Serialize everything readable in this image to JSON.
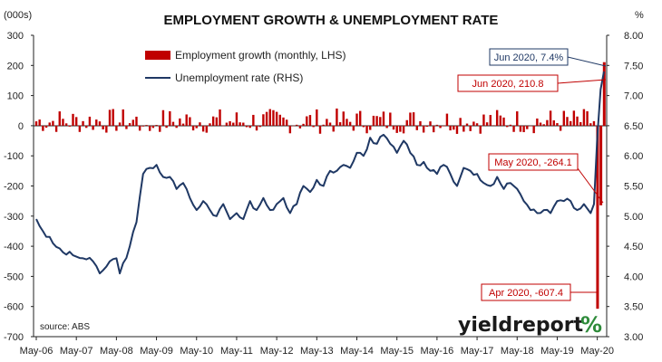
{
  "chart_data": {
    "type": "bar+line",
    "title": "EMPLOYMENT GROWTH & UNEMPLOYMENT RATE",
    "left_unit": "(000s)",
    "right_unit": "%",
    "y_left": {
      "min": -700,
      "max": 300,
      "ticks": [
        "300",
        "200",
        "100",
        "0",
        "-100",
        "-200",
        "-300",
        "-400",
        "-500",
        "-600",
        "-700"
      ]
    },
    "y_right": {
      "min": 3.0,
      "max": 8.0,
      "ticks": [
        "8.00",
        "7.50",
        "7.00",
        "6.50",
        "6.00",
        "5.50",
        "5.00",
        "4.50",
        "4.00",
        "3.50",
        "3.00"
      ]
    },
    "x_ticks": [
      "May-06",
      "May-07",
      "May-08",
      "May-09",
      "May-10",
      "May-11",
      "May-12",
      "May-13",
      "May-14",
      "May-15",
      "May-16",
      "May-17",
      "May-18",
      "May-19",
      "May-20"
    ],
    "series": [
      {
        "name": "Employment growth (monthly, LHS)",
        "color": "#c00000",
        "axis": "left",
        "kind": "bar"
      },
      {
        "name": "Unemployment rate (RHS)",
        "color": "#1f3864",
        "axis": "right",
        "kind": "line"
      }
    ],
    "employment_growth_recent": [
      {
        "date": "Apr 2020",
        "value": -607.4
      },
      {
        "date": "May 2020",
        "value": -264.1
      },
      {
        "date": "Jun 2020",
        "value": 210.8
      }
    ],
    "unemployment_rate_anchors": [
      {
        "month": 0,
        "value": 4.95
      },
      {
        "month": 2,
        "value": 4.75
      },
      {
        "month": 5,
        "value": 4.55
      },
      {
        "month": 8,
        "value": 4.4
      },
      {
        "month": 11,
        "value": 4.35
      },
      {
        "month": 14,
        "value": 4.3
      },
      {
        "month": 17,
        "value": 4.25
      },
      {
        "month": 19,
        "value": 4.05
      },
      {
        "month": 20,
        "value": 4.1
      },
      {
        "month": 22,
        "value": 4.25
      },
      {
        "month": 24,
        "value": 4.3
      },
      {
        "month": 25,
        "value": 4.05
      },
      {
        "month": 28,
        "value": 4.5
      },
      {
        "month": 30,
        "value": 4.9
      },
      {
        "month": 32,
        "value": 5.7
      },
      {
        "month": 34,
        "value": 5.8
      },
      {
        "month": 36,
        "value": 5.85
      },
      {
        "month": 38,
        "value": 5.65
      },
      {
        "month": 40,
        "value": 5.65
      },
      {
        "month": 42,
        "value": 5.45
      },
      {
        "month": 44,
        "value": 5.55
      },
      {
        "month": 46,
        "value": 5.3
      },
      {
        "month": 48,
        "value": 5.1
      },
      {
        "month": 50,
        "value": 5.25
      },
      {
        "month": 52,
        "value": 5.1
      },
      {
        "month": 54,
        "value": 5.0
      },
      {
        "month": 56,
        "value": 5.2
      },
      {
        "month": 58,
        "value": 4.95
      },
      {
        "month": 60,
        "value": 5.05
      },
      {
        "month": 62,
        "value": 4.95
      },
      {
        "month": 64,
        "value": 5.25
      },
      {
        "month": 66,
        "value": 5.1
      },
      {
        "month": 68,
        "value": 5.3
      },
      {
        "month": 70,
        "value": 5.1
      },
      {
        "month": 72,
        "value": 5.2
      },
      {
        "month": 74,
        "value": 5.3
      },
      {
        "month": 76,
        "value": 5.05
      },
      {
        "month": 78,
        "value": 5.2
      },
      {
        "month": 80,
        "value": 5.5
      },
      {
        "month": 82,
        "value": 5.4
      },
      {
        "month": 84,
        "value": 5.6
      },
      {
        "month": 86,
        "value": 5.5
      },
      {
        "month": 88,
        "value": 5.75
      },
      {
        "month": 90,
        "value": 5.75
      },
      {
        "month": 92,
        "value": 5.85
      },
      {
        "month": 94,
        "value": 5.8
      },
      {
        "month": 96,
        "value": 6.05
      },
      {
        "month": 98,
        "value": 6.0
      },
      {
        "month": 100,
        "value": 6.3
      },
      {
        "month": 102,
        "value": 6.2
      },
      {
        "month": 104,
        "value": 6.35
      },
      {
        "month": 106,
        "value": 6.2
      },
      {
        "month": 108,
        "value": 6.05
      },
      {
        "month": 110,
        "value": 6.25
      },
      {
        "month": 112,
        "value": 6.05
      },
      {
        "month": 114,
        "value": 5.85
      },
      {
        "month": 116,
        "value": 5.9
      },
      {
        "month": 118,
        "value": 5.75
      },
      {
        "month": 120,
        "value": 5.7
      },
      {
        "month": 122,
        "value": 5.85
      },
      {
        "month": 124,
        "value": 5.7
      },
      {
        "month": 126,
        "value": 5.5
      },
      {
        "month": 128,
        "value": 5.8
      },
      {
        "month": 130,
        "value": 5.75
      },
      {
        "month": 132,
        "value": 5.7
      },
      {
        "month": 134,
        "value": 5.55
      },
      {
        "month": 136,
        "value": 5.5
      },
      {
        "month": 138,
        "value": 5.65
      },
      {
        "month": 140,
        "value": 5.45
      },
      {
        "month": 142,
        "value": 5.55
      },
      {
        "month": 144,
        "value": 5.45
      },
      {
        "month": 146,
        "value": 5.25
      },
      {
        "month": 148,
        "value": 5.1
      },
      {
        "month": 150,
        "value": 5.05
      },
      {
        "month": 152,
        "value": 5.1
      },
      {
        "month": 154,
        "value": 5.05
      },
      {
        "month": 156,
        "value": 5.25
      },
      {
        "month": 158,
        "value": 5.25
      },
      {
        "month": 160,
        "value": 5.25
      },
      {
        "month": 162,
        "value": 5.1
      },
      {
        "month": 164,
        "value": 5.2
      },
      {
        "month": 166,
        "value": 5.05
      },
      {
        "month": 167,
        "value": 5.2
      },
      {
        "month": 168,
        "value": 6.3
      },
      {
        "month": 169,
        "value": 7.1
      },
      {
        "month": 170,
        "value": 7.4
      }
    ],
    "legend_position": "top-center",
    "annotations": [
      "Jun 2020, 7.4%",
      "Jun 2020, 210.8",
      "May 2020, -264.1",
      "Apr 2020, -607.4"
    ],
    "source": "source: ABS"
  },
  "branding": {
    "logo_text": "yieldreport",
    "logo_symbol": "%"
  }
}
